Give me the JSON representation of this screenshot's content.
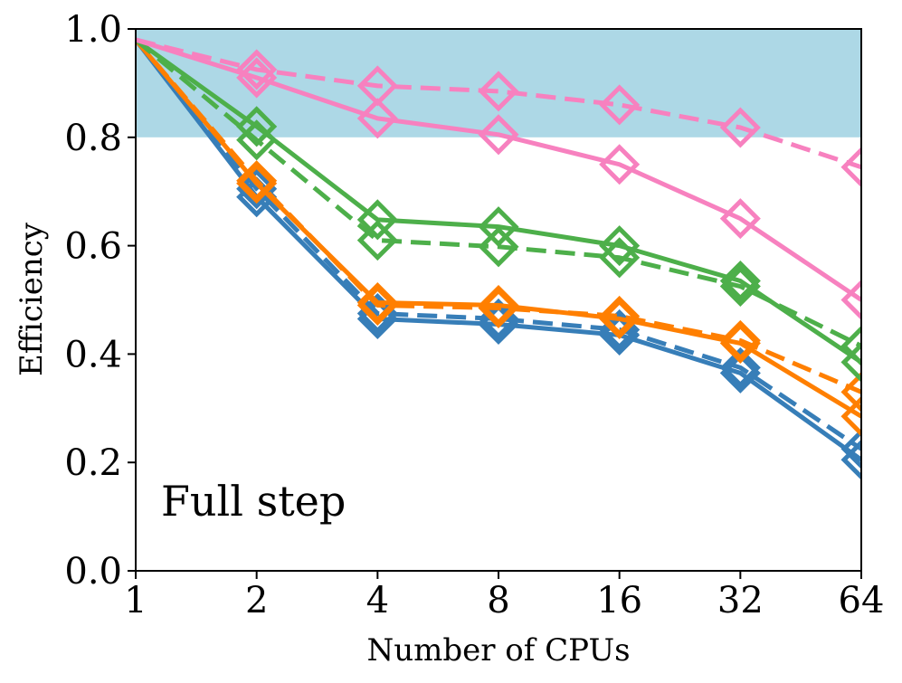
{
  "chart_data": {
    "type": "line",
    "title": "",
    "xlabel": "Number of CPUs",
    "ylabel": "Efficiency",
    "annotation": "Full step",
    "x": [
      1,
      2,
      4,
      8,
      16,
      32,
      64
    ],
    "xticks": [
      "1",
      "2",
      "4",
      "8",
      "16",
      "32",
      "64"
    ],
    "yticks": [
      "0.0",
      "0.2",
      "0.4",
      "0.6",
      "0.8",
      "1.0"
    ],
    "ylim": [
      0,
      1
    ],
    "shaded_band": {
      "y_from": 0.8,
      "y_to": 1.0,
      "color": "#add8e6"
    },
    "series": [
      {
        "name": "blue-solid",
        "color": "#377eb8",
        "dash": false,
        "values": [
          0.98,
          0.69,
          0.465,
          0.455,
          0.435,
          0.365,
          0.205
        ]
      },
      {
        "name": "blue-dashed",
        "color": "#377eb8",
        "dash": true,
        "values": [
          0.98,
          0.705,
          0.475,
          0.465,
          0.445,
          0.375,
          0.225
        ]
      },
      {
        "name": "orange-solid",
        "color": "#ff7f00",
        "dash": false,
        "values": [
          0.98,
          0.715,
          0.495,
          0.49,
          0.465,
          0.42,
          0.285
        ]
      },
      {
        "name": "orange-dashed",
        "color": "#ff7f00",
        "dash": true,
        "values": [
          0.98,
          0.72,
          0.49,
          0.485,
          0.47,
          0.425,
          0.33
        ]
      },
      {
        "name": "green-solid",
        "color": "#4daf4a",
        "dash": false,
        "values": [
          0.98,
          0.82,
          0.648,
          0.635,
          0.6,
          0.535,
          0.385
        ]
      },
      {
        "name": "green-dashed",
        "color": "#4daf4a",
        "dash": true,
        "values": [
          0.98,
          0.795,
          0.61,
          0.598,
          0.578,
          0.525,
          0.415
        ]
      },
      {
        "name": "pink-solid",
        "color": "#f781bf",
        "dash": false,
        "values": [
          0.98,
          0.91,
          0.835,
          0.805,
          0.75,
          0.65,
          0.5
        ]
      },
      {
        "name": "pink-dashed",
        "color": "#f781bf",
        "dash": true,
        "values": [
          0.98,
          0.925,
          0.895,
          0.885,
          0.86,
          0.818,
          0.745
        ]
      }
    ]
  }
}
